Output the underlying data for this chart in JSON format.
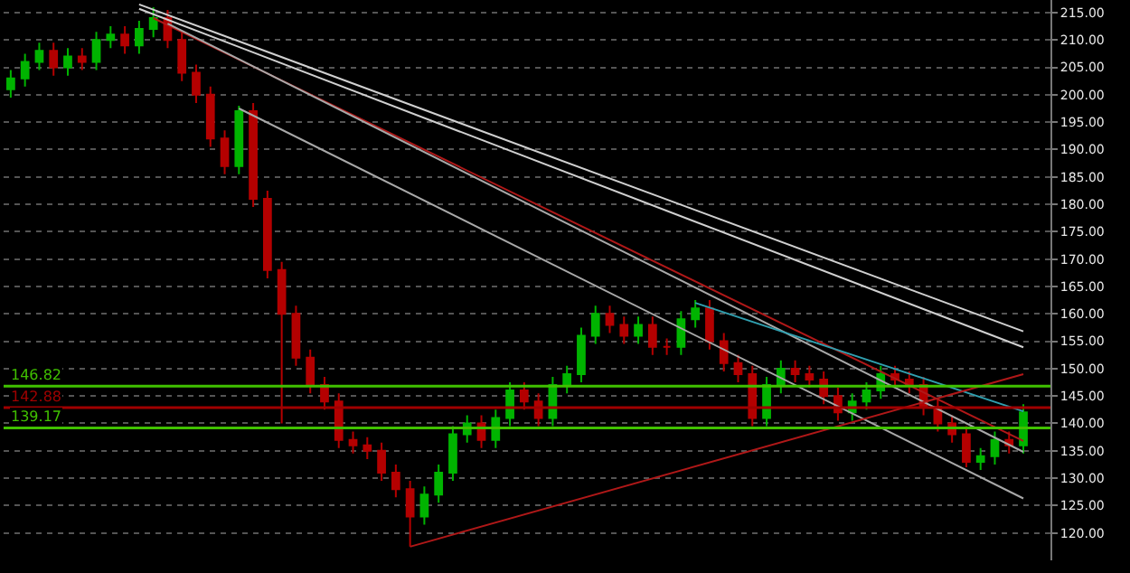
{
  "chart_data": {
    "type": "candlestick",
    "categories": [
      null,
      null,
      null,
      null,
      null,
      null,
      null,
      null,
      null,
      null,
      null,
      null,
      null,
      null,
      null,
      null,
      null,
      null,
      null,
      null,
      null,
      null,
      null,
      null,
      null,
      null,
      null,
      null,
      null,
      null,
      null,
      null,
      null,
      null,
      null,
      null,
      null,
      null,
      null,
      null,
      null,
      null,
      null,
      null,
      null,
      null,
      null,
      null,
      null,
      null,
      null,
      null,
      null,
      null,
      null,
      null,
      null,
      null,
      null,
      null,
      null,
      null,
      null,
      null,
      null,
      null,
      null,
      null,
      null,
      null,
      null,
      null
    ],
    "ylim": [
      115,
      217.3
    ],
    "yticks": [
      {
        "value": 120,
        "label": "120.00"
      },
      {
        "value": 125,
        "label": "125.00"
      },
      {
        "value": 130,
        "label": "130.00"
      },
      {
        "value": 135,
        "label": "135.00"
      },
      {
        "value": 140,
        "label": "140.00"
      },
      {
        "value": 145,
        "label": "145.00"
      },
      {
        "value": 150,
        "label": "150.00"
      },
      {
        "value": 155,
        "label": "155.00"
      },
      {
        "value": 160,
        "label": "160.00"
      },
      {
        "value": 165,
        "label": "165.00"
      },
      {
        "value": 170,
        "label": "170.00"
      },
      {
        "value": 175,
        "label": "175.00"
      },
      {
        "value": 180,
        "label": "180.00"
      },
      {
        "value": 185,
        "label": "185.00"
      },
      {
        "value": 190,
        "label": "190.00"
      },
      {
        "value": 195,
        "label": "195.00"
      },
      {
        "value": 200,
        "label": "200.00"
      },
      {
        "value": 205,
        "label": "205.00"
      },
      {
        "value": 210,
        "label": "210.00"
      },
      {
        "value": 215,
        "label": "215.00"
      }
    ],
    "grid": "y",
    "tick_labels": "y",
    "series": [
      {
        "type": "candlestick",
        "colors": [
          "#00b400",
          "#00b400",
          "#00b400",
          "#b40000",
          "#00b400",
          "#b40000",
          "#00b400",
          "#00b400",
          "#b40000",
          "#00b400",
          "#00b400",
          "#b40000",
          "#b40000",
          "#b40000",
          "#b40000",
          "#b40000",
          "#00b400",
          "#b40000",
          "#b40000",
          "#b40000",
          "#b40000",
          "#b40000",
          "#b40000",
          "#b40000",
          "#b40000",
          "#b40000",
          "#b40000",
          "#b40000",
          "#b40000",
          "#00b400",
          "#00b400",
          "#00b400",
          "#00b400",
          "#b40000",
          "#00b400",
          "#00b400",
          "#b40000",
          "#b40000",
          "#00b400",
          "#00b400",
          "#00b400",
          "#00b400",
          "#b40000",
          "#b40000",
          "#00b400",
          "#b40000",
          "#b40000",
          "#00b400",
          "#00b400",
          "#b40000",
          "#b40000",
          "#b40000",
          "#b40000",
          "#00b400",
          "#00b400",
          "#b40000",
          "#b40000",
          "#b40000",
          "#b40000",
          "#00b400",
          "#00b400",
          "#00b400",
          "#b40000",
          "#b40000",
          "#b40000",
          "#b40000",
          "#b40000",
          "#b40000",
          "#00b400",
          "#00b400",
          "#b40000",
          "#00b400"
        ],
        "ohlc": [
          [
            201,
            204.5,
            199.5,
            203
          ],
          [
            203,
            207.5,
            201.5,
            206
          ],
          [
            206,
            209.5,
            204.5,
            208
          ],
          [
            208,
            209.5,
            203.5,
            205
          ],
          [
            205,
            208.5,
            203.5,
            207
          ],
          [
            207,
            208.5,
            204.5,
            206
          ],
          [
            206,
            211.5,
            204.5,
            210
          ],
          [
            210,
            212.5,
            208.5,
            211
          ],
          [
            211,
            212.5,
            207.5,
            209
          ],
          [
            209,
            213.5,
            207.5,
            212
          ],
          [
            212,
            216,
            210.5,
            214
          ],
          [
            214,
            215.5,
            208.5,
            210
          ],
          [
            210,
            211.5,
            202.5,
            204
          ],
          [
            204,
            205.5,
            198.5,
            200
          ],
          [
            200,
            201.5,
            190.5,
            192
          ],
          [
            192,
            193.5,
            185.5,
            187
          ],
          [
            187,
            198,
            185.5,
            197
          ],
          [
            197,
            198.5,
            179.5,
            181
          ],
          [
            181,
            182.5,
            166.5,
            168
          ],
          [
            168,
            169.5,
            140,
            160
          ],
          [
            160,
            161.5,
            150.5,
            152
          ],
          [
            152,
            153.5,
            145.5,
            147
          ],
          [
            147,
            148.5,
            142.5,
            144
          ],
          [
            144,
            145.5,
            135.5,
            137
          ],
          [
            137,
            138.5,
            134.5,
            136
          ],
          [
            136,
            137.5,
            133.5,
            135
          ],
          [
            135,
            136.5,
            129.5,
            131
          ],
          [
            131,
            132.5,
            126.5,
            128
          ],
          [
            128,
            129.5,
            117.5,
            123
          ],
          [
            123,
            128.5,
            121.5,
            127
          ],
          [
            127,
            132.5,
            125.5,
            131
          ],
          [
            131,
            139.5,
            129.5,
            138
          ],
          [
            138,
            141.5,
            136.5,
            140
          ],
          [
            140,
            141.5,
            135.5,
            137
          ],
          [
            137,
            142.5,
            135.5,
            141
          ],
          [
            141,
            147.5,
            139.5,
            146
          ],
          [
            146,
            147.5,
            142.5,
            144
          ],
          [
            144,
            145.5,
            139.5,
            141
          ],
          [
            141,
            148.5,
            139.5,
            147
          ],
          [
            147,
            150.5,
            145.5,
            149
          ],
          [
            149,
            157.5,
            147.5,
            156
          ],
          [
            156,
            161.5,
            154.5,
            160
          ],
          [
            160,
            161.5,
            156.5,
            158
          ],
          [
            158,
            159.5,
            154.5,
            156
          ],
          [
            156,
            159.5,
            154.5,
            158
          ],
          [
            158,
            159.5,
            152.5,
            154
          ],
          [
            154,
            155.5,
            152.5,
            154
          ],
          [
            154,
            160.5,
            152.5,
            159
          ],
          [
            159,
            162.5,
            157.5,
            161
          ],
          [
            161,
            162.5,
            153.5,
            155
          ],
          [
            155,
            156.5,
            149.5,
            151
          ],
          [
            151,
            152.5,
            147.5,
            149
          ],
          [
            149,
            150.5,
            139.5,
            141
          ],
          [
            141,
            148.5,
            139.5,
            147
          ],
          [
            147,
            151.5,
            145.5,
            150
          ],
          [
            150,
            151.5,
            147.5,
            149
          ],
          [
            149,
            150.5,
            146.5,
            148
          ],
          [
            148,
            149.5,
            143.5,
            145
          ],
          [
            145,
            146.5,
            140.5,
            142
          ],
          [
            142,
            145.5,
            140.5,
            144
          ],
          [
            144,
            147.5,
            142.5,
            146
          ],
          [
            146,
            150.5,
            144.5,
            149
          ],
          [
            149,
            150.5,
            146.5,
            148
          ],
          [
            148,
            149.5,
            145.5,
            147
          ],
          [
            147,
            148.5,
            141.5,
            143
          ],
          [
            143,
            144.5,
            138.5,
            140
          ],
          [
            140,
            141.5,
            136.5,
            138
          ],
          [
            138,
            139.5,
            132,
            133
          ],
          [
            133,
            135.5,
            131.5,
            134
          ],
          [
            134,
            138.5,
            132.5,
            137
          ],
          [
            137,
            138.5,
            134.5,
            136
          ],
          [
            136,
            143.5,
            134.5,
            142
          ]
        ]
      },
      {
        "type": "line",
        "color": "#d0d0d0",
        "values": [
          null,
          null,
          null,
          null,
          null,
          null,
          null,
          null,
          null,
          216.5,
          null,
          null,
          null,
          null,
          null,
          null,
          null,
          null,
          null,
          null,
          null,
          null,
          null,
          null,
          null,
          null,
          null,
          null,
          null,
          null,
          null,
          null,
          null,
          null,
          null,
          null,
          null,
          null,
          null,
          null,
          null,
          null,
          null,
          null,
          null,
          null,
          null,
          null,
          null,
          null,
          null,
          null,
          null,
          null,
          null,
          null,
          null,
          null,
          null,
          null,
          null,
          null,
          null,
          null,
          null,
          null,
          null,
          null,
          null,
          null,
          null,
          156.8
        ]
      },
      {
        "type": "line",
        "color": "#d0d0d0",
        "values": [
          null,
          null,
          null,
          null,
          null,
          null,
          null,
          null,
          null,
          215.7,
          null,
          null,
          null,
          null,
          null,
          null,
          null,
          null,
          null,
          null,
          null,
          null,
          null,
          null,
          null,
          null,
          null,
          null,
          null,
          null,
          null,
          null,
          null,
          null,
          null,
          null,
          null,
          null,
          null,
          null,
          null,
          null,
          null,
          null,
          null,
          null,
          null,
          null,
          null,
          null,
          null,
          null,
          null,
          null,
          null,
          null,
          null,
          null,
          null,
          null,
          null,
          null,
          null,
          null,
          null,
          null,
          null,
          null,
          null,
          null,
          null,
          153.9
        ]
      },
      {
        "type": "line",
        "color": "#b01818",
        "values": [
          null,
          null,
          null,
          null,
          null,
          null,
          null,
          null,
          null,
          null,
          214,
          null,
          null,
          null,
          null,
          null,
          null,
          null,
          null,
          null,
          null,
          null,
          null,
          null,
          null,
          null,
          null,
          null,
          null,
          null,
          null,
          null,
          null,
          null,
          null,
          null,
          null,
          null,
          null,
          null,
          null,
          null,
          null,
          null,
          null,
          null,
          null,
          null,
          null,
          null,
          null,
          null,
          null,
          null,
          null,
          null,
          null,
          null,
          null,
          null,
          null,
          null,
          null,
          null,
          null,
          null,
          null,
          null,
          null,
          null,
          null,
          136.8
        ]
      },
      {
        "type": "line",
        "color": "#a8a8a8",
        "values": [
          null,
          null,
          null,
          null,
          null,
          null,
          null,
          null,
          null,
          null,
          null,
          213,
          null,
          null,
          null,
          null,
          null,
          null,
          null,
          null,
          null,
          null,
          null,
          null,
          null,
          null,
          null,
          null,
          null,
          null,
          null,
          null,
          null,
          null,
          null,
          null,
          null,
          null,
          null,
          null,
          null,
          null,
          null,
          null,
          null,
          null,
          null,
          null,
          null,
          null,
          null,
          null,
          null,
          null,
          null,
          null,
          null,
          null,
          null,
          null,
          null,
          null,
          null,
          null,
          null,
          null,
          null,
          null,
          null,
          null,
          null,
          134.8
        ]
      },
      {
        "type": "line",
        "color": "#a8a8a8",
        "values": [
          null,
          null,
          null,
          null,
          null,
          null,
          null,
          null,
          null,
          null,
          null,
          null,
          null,
          null,
          null,
          null,
          197.5,
          null,
          null,
          null,
          null,
          null,
          null,
          null,
          null,
          null,
          null,
          null,
          null,
          null,
          null,
          null,
          null,
          null,
          null,
          null,
          null,
          null,
          null,
          null,
          null,
          null,
          null,
          null,
          null,
          null,
          null,
          null,
          null,
          null,
          null,
          null,
          null,
          null,
          null,
          null,
          null,
          null,
          null,
          null,
          null,
          null,
          null,
          null,
          null,
          null,
          null,
          null,
          null,
          null,
          null,
          126.3
        ]
      },
      {
        "type": "line",
        "color": "#30a0b0",
        "values": [
          null,
          null,
          null,
          null,
          null,
          null,
          null,
          null,
          null,
          null,
          null,
          null,
          null,
          null,
          null,
          null,
          null,
          null,
          null,
          null,
          null,
          null,
          null,
          null,
          null,
          null,
          null,
          null,
          null,
          null,
          null,
          null,
          null,
          null,
          null,
          null,
          null,
          null,
          null,
          null,
          null,
          null,
          null,
          null,
          null,
          null,
          null,
          null,
          162,
          null,
          null,
          null,
          null,
          null,
          null,
          null,
          null,
          null,
          null,
          null,
          null,
          null,
          null,
          null,
          null,
          null,
          null,
          null,
          null,
          null,
          null,
          142.2
        ]
      },
      {
        "type": "line",
        "color": "#b01818",
        "values": [
          null,
          null,
          null,
          null,
          null,
          null,
          null,
          null,
          null,
          null,
          null,
          null,
          null,
          null,
          null,
          null,
          null,
          null,
          null,
          null,
          null,
          null,
          null,
          null,
          null,
          null,
          null,
          null,
          117.5,
          null,
          null,
          null,
          null,
          null,
          null,
          null,
          null,
          null,
          null,
          null,
          null,
          null,
          null,
          null,
          null,
          null,
          null,
          null,
          null,
          null,
          null,
          null,
          null,
          null,
          null,
          null,
          null,
          null,
          null,
          null,
          null,
          null,
          null,
          null,
          null,
          null,
          null,
          null,
          null,
          null,
          null,
          149
        ]
      }
    ],
    "ref_lines": [
      {
        "axis": "y",
        "value": 146.82,
        "label": "146.82",
        "color": "#40c000"
      },
      {
        "axis": "y",
        "value": 139.17,
        "label": "139.17",
        "color": "#40c000"
      },
      {
        "axis": "y",
        "value": 142.88,
        "label": "142.88",
        "color": "#a00000"
      }
    ]
  }
}
